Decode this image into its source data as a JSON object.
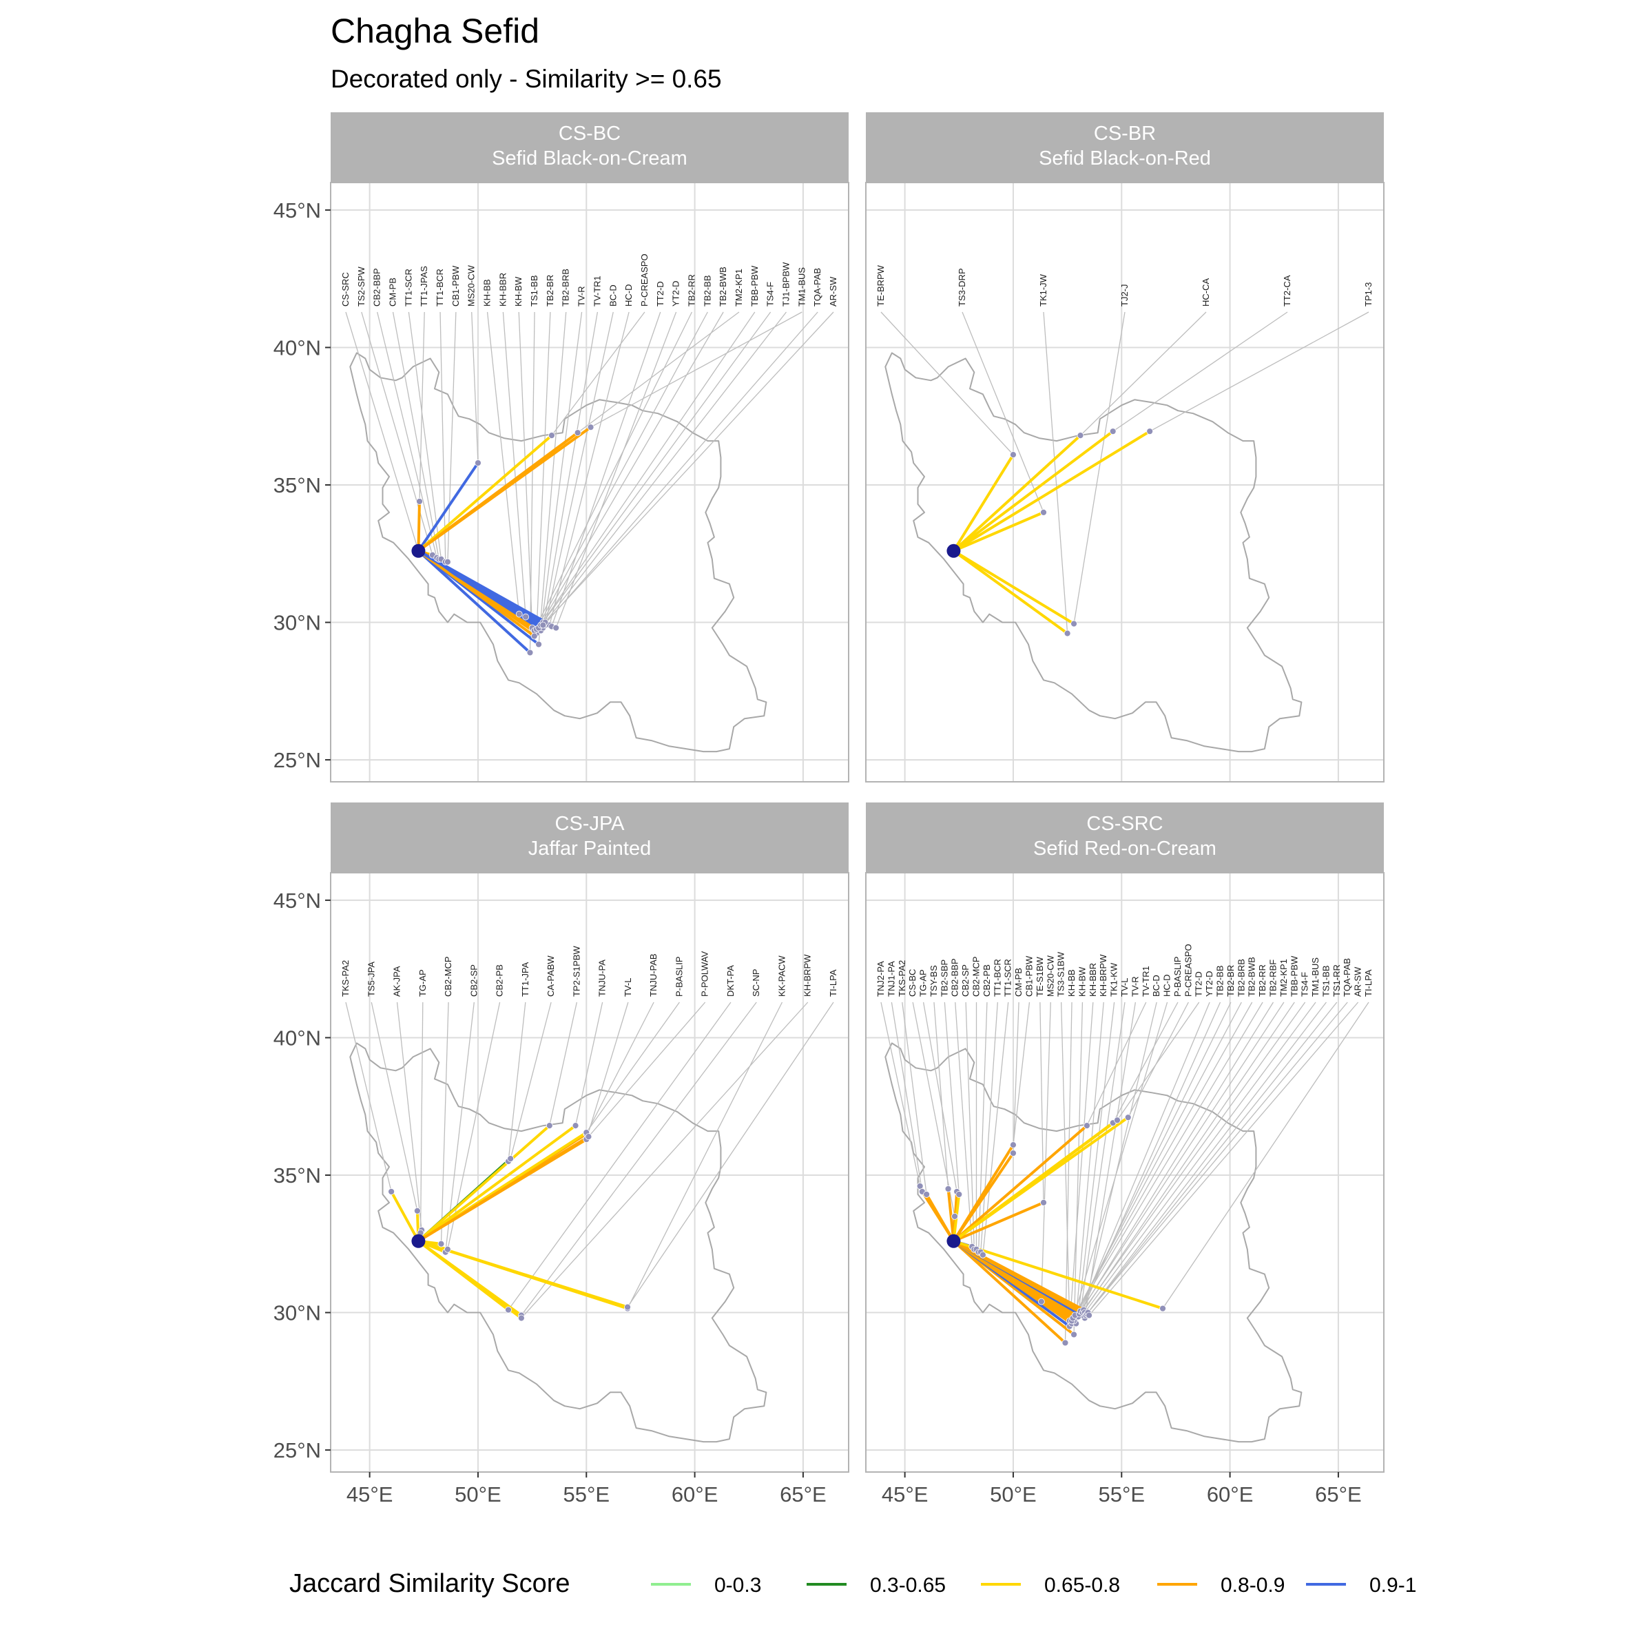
{
  "figure": {
    "title": "Chagha Sefid",
    "subtitle": "Decorated only - Similarity >= 0.65"
  },
  "legend": {
    "title": "Jaccard Similarity Score",
    "items": [
      {
        "label": "0-0.3",
        "color": "#90ee90"
      },
      {
        "label": "0.3-0.65",
        "color": "#228b22"
      },
      {
        "label": "0.65-0.8",
        "color": "#ffd700"
      },
      {
        "label": "0.8-0.9",
        "color": "#ffa500"
      },
      {
        "label": "0.9-1",
        "color": "#4169e1"
      }
    ]
  },
  "chart_data": {
    "type": "map",
    "origin": {
      "name": "Chagha Sefid",
      "lon": 47.25,
      "lat": 32.6
    },
    "xlim": [
      43.2,
      67.1
    ],
    "ylim": [
      24.2,
      46.0
    ],
    "x_ticks": [
      {
        "value": 45,
        "label": "45°E"
      },
      {
        "value": 50,
        "label": "50°E"
      },
      {
        "value": 55,
        "label": "55°E"
      },
      {
        "value": 60,
        "label": "60°E"
      },
      {
        "value": 65,
        "label": "65°E"
      }
    ],
    "y_ticks": [
      {
        "value": 25,
        "label": "25°N"
      },
      {
        "value": 30,
        "label": "30°N"
      },
      {
        "value": 35,
        "label": "35°N"
      },
      {
        "value": 40,
        "label": "40°N"
      },
      {
        "value": 45,
        "label": "45°N"
      }
    ],
    "grid": true,
    "iran_outline": [
      [
        44.1,
        39.3
      ],
      [
        44.4,
        39.8
      ],
      [
        44.8,
        39.6
      ],
      [
        45.0,
        39.2
      ],
      [
        45.5,
        38.9
      ],
      [
        46.2,
        38.8
      ],
      [
        46.5,
        38.9
      ],
      [
        47.0,
        39.3
      ],
      [
        47.8,
        39.6
      ],
      [
        48.2,
        39.1
      ],
      [
        48.0,
        38.5
      ],
      [
        48.6,
        38.3
      ],
      [
        48.9,
        37.8
      ],
      [
        49.1,
        37.5
      ],
      [
        49.6,
        37.4
      ],
      [
        50.1,
        37.2
      ],
      [
        50.5,
        36.9
      ],
      [
        51.2,
        36.7
      ],
      [
        52.0,
        36.6
      ],
      [
        53.0,
        36.8
      ],
      [
        53.9,
        36.9
      ],
      [
        54.0,
        37.4
      ],
      [
        55.0,
        37.9
      ],
      [
        55.6,
        38.1
      ],
      [
        56.4,
        38.0
      ],
      [
        57.1,
        37.9
      ],
      [
        57.6,
        37.7
      ],
      [
        58.3,
        37.6
      ],
      [
        59.2,
        37.3
      ],
      [
        59.9,
        36.9
      ],
      [
        60.6,
        36.6
      ],
      [
        61.1,
        36.6
      ],
      [
        61.2,
        36.0
      ],
      [
        61.2,
        35.3
      ],
      [
        61.1,
        34.9
      ],
      [
        60.8,
        34.5
      ],
      [
        60.5,
        34.0
      ],
      [
        60.7,
        33.6
      ],
      [
        60.9,
        33.1
      ],
      [
        60.6,
        32.9
      ],
      [
        60.8,
        32.3
      ],
      [
        60.9,
        31.6
      ],
      [
        61.6,
        31.4
      ],
      [
        61.8,
        30.9
      ],
      [
        61.4,
        30.4
      ],
      [
        60.8,
        29.8
      ],
      [
        61.3,
        29.2
      ],
      [
        61.6,
        28.8
      ],
      [
        62.4,
        28.4
      ],
      [
        62.8,
        27.6
      ],
      [
        62.9,
        27.2
      ],
      [
        63.3,
        27.1
      ],
      [
        63.2,
        26.6
      ],
      [
        62.3,
        26.5
      ],
      [
        61.8,
        26.2
      ],
      [
        61.6,
        25.4
      ],
      [
        61.0,
        25.3
      ],
      [
        60.4,
        25.3
      ],
      [
        59.6,
        25.4
      ],
      [
        58.8,
        25.5
      ],
      [
        58.0,
        25.7
      ],
      [
        57.3,
        25.8
      ],
      [
        57.0,
        26.6
      ],
      [
        56.6,
        27.1
      ],
      [
        56.1,
        27.1
      ],
      [
        55.5,
        26.7
      ],
      [
        54.7,
        26.5
      ],
      [
        54.0,
        26.6
      ],
      [
        53.5,
        26.8
      ],
      [
        52.7,
        27.4
      ],
      [
        51.9,
        27.8
      ],
      [
        51.4,
        27.9
      ],
      [
        50.9,
        28.6
      ],
      [
        50.7,
        29.2
      ],
      [
        50.1,
        30.0
      ],
      [
        49.5,
        30.0
      ],
      [
        48.9,
        30.3
      ],
      [
        48.6,
        30.0
      ],
      [
        48.2,
        30.4
      ],
      [
        48.0,
        30.9
      ],
      [
        47.7,
        31.0
      ],
      [
        47.7,
        31.4
      ],
      [
        47.3,
        31.8
      ],
      [
        46.8,
        32.3
      ],
      [
        46.1,
        32.9
      ],
      [
        45.6,
        33.1
      ],
      [
        45.4,
        33.7
      ],
      [
        45.9,
        34.0
      ],
      [
        45.6,
        34.3
      ],
      [
        45.6,
        34.9
      ],
      [
        45.9,
        35.3
      ],
      [
        45.4,
        35.8
      ],
      [
        45.3,
        36.2
      ],
      [
        44.9,
        36.6
      ],
      [
        44.8,
        37.2
      ],
      [
        44.6,
        37.7
      ],
      [
        44.4,
        38.3
      ],
      [
        44.1,
        39.3
      ]
    ],
    "panels": [
      {
        "id": "CS-BC",
        "strip": [
          "CS-BC",
          "Sefid Black-on-Cream"
        ],
        "sites": [
          {
            "label": "CS-SRC",
            "lon": 47.25,
            "lat": 32.6,
            "cls": null
          },
          {
            "label": "TS2-SPW",
            "lon": 47.9,
            "lat": 32.45,
            "cls": 2
          },
          {
            "label": "CB2-BBP",
            "lon": 48.1,
            "lat": 32.35,
            "cls": 3
          },
          {
            "label": "CM-PB",
            "lon": 48.2,
            "lat": 32.3,
            "cls": 3
          },
          {
            "label": "TT1-SCR",
            "lon": 48.3,
            "lat": 32.3,
            "cls": 3
          },
          {
            "label": "TT1-JPAS",
            "lon": 47.3,
            "lat": 34.4,
            "cls": 3
          },
          {
            "label": "TT1-BCR",
            "lon": 48.5,
            "lat": 32.2,
            "cls": 3
          },
          {
            "label": "CB1-PBW",
            "lon": 48.6,
            "lat": 32.2,
            "cls": 3
          },
          {
            "label": "MS20-CW",
            "lon": 50.0,
            "lat": 35.8,
            "cls": 4
          },
          {
            "label": "KH-BB",
            "lon": 51.9,
            "lat": 30.3,
            "cls": 4
          },
          {
            "label": "KH-BBR",
            "lon": 52.2,
            "lat": 30.2,
            "cls": 4
          },
          {
            "label": "KH-BW",
            "lon": 52.5,
            "lat": 29.8,
            "cls": 3
          },
          {
            "label": "TS1-BB",
            "lon": 52.4,
            "lat": 28.9,
            "cls": 4
          },
          {
            "label": "TB2-BR",
            "lon": 52.7,
            "lat": 29.6,
            "cls": 3
          },
          {
            "label": "TB2-BRB",
            "lon": 52.8,
            "lat": 29.2,
            "cls": 4
          },
          {
            "label": "TV-R",
            "lon": 52.9,
            "lat": 29.7,
            "cls": 3
          },
          {
            "label": "TV-TR1",
            "lon": 53.0,
            "lat": 29.8,
            "cls": 4
          },
          {
            "label": "BC-D",
            "lon": 53.1,
            "lat": 29.9,
            "cls": 4
          },
          {
            "label": "HC-D",
            "lon": 53.3,
            "lat": 29.9,
            "cls": 4
          },
          {
            "label": "P-CREASPO",
            "lon": 53.4,
            "lat": 36.8,
            "cls": 2
          },
          {
            "label": "TT2-D",
            "lon": 53.4,
            "lat": 29.85,
            "cls": 4
          },
          {
            "label": "YT2-D",
            "lon": 53.6,
            "lat": 29.8,
            "cls": 4
          },
          {
            "label": "TB2-RR",
            "lon": 52.6,
            "lat": 29.7,
            "cls": 3
          },
          {
            "label": "TB2-BB",
            "lon": 52.7,
            "lat": 29.75,
            "cls": 3
          },
          {
            "label": "TB2-BWB",
            "lon": 52.8,
            "lat": 29.8,
            "cls": 4
          },
          {
            "label": "TM2-KP1",
            "lon": 54.6,
            "lat": 36.9,
            "cls": 3
          },
          {
            "label": "TBB-PBW",
            "lon": 52.9,
            "lat": 29.9,
            "cls": 4
          },
          {
            "label": "TS4-F",
            "lon": 53.0,
            "lat": 30.0,
            "cls": 4
          },
          {
            "label": "TJ1-BPBW",
            "lon": 53.1,
            "lat": 30.0,
            "cls": 4
          },
          {
            "label": "TM1-BUS",
            "lon": 55.2,
            "lat": 37.1,
            "cls": 3
          },
          {
            "label": "TQA-PAB",
            "lon": 52.6,
            "lat": 29.5,
            "cls": 3
          },
          {
            "label": "AR-SW",
            "lon": 53.0,
            "lat": 29.9,
            "cls": 4
          }
        ]
      },
      {
        "id": "CS-BR",
        "strip": [
          "CS-BR",
          "Sefid Black-on-Red"
        ],
        "sites": [
          {
            "label": "TE-BRPW",
            "lon": 50.0,
            "lat": 36.1,
            "cls": 2
          },
          {
            "label": "TS3-DRP",
            "lon": 51.4,
            "lat": 34.0,
            "cls": 2
          },
          {
            "label": "TK1-JW",
            "lon": 52.5,
            "lat": 29.6,
            "cls": 2
          },
          {
            "label": "TJ2-J",
            "lon": 52.8,
            "lat": 29.95,
            "cls": 2
          },
          {
            "label": "HC-CA",
            "lon": 53.1,
            "lat": 36.8,
            "cls": 2
          },
          {
            "label": "TT2-CA",
            "lon": 54.6,
            "lat": 36.95,
            "cls": 2
          },
          {
            "label": "TP1-3",
            "lon": 56.3,
            "lat": 36.95,
            "cls": 2
          }
        ]
      },
      {
        "id": "CS-JPA",
        "strip": [
          "CS-JPA",
          "Jaffar Painted"
        ],
        "sites": [
          {
            "label": "TKS-PA2",
            "lon": 46.0,
            "lat": 34.4,
            "cls": 2
          },
          {
            "label": "TS5-JPA",
            "lon": 47.2,
            "lat": 33.7,
            "cls": 2
          },
          {
            "label": "AK-JPA",
            "lon": 47.4,
            "lat": 33.0,
            "cls": 2
          },
          {
            "label": "TG-AP",
            "lon": 47.35,
            "lat": 32.9,
            "cls": 2
          },
          {
            "label": "CB2-MCP",
            "lon": 48.3,
            "lat": 32.5,
            "cls": 2
          },
          {
            "label": "CB2-SP",
            "lon": 48.5,
            "lat": 32.2,
            "cls": 2
          },
          {
            "label": "CB2-PB",
            "lon": 48.6,
            "lat": 32.3,
            "cls": 2
          },
          {
            "label": "TT1-JPA",
            "lon": 51.4,
            "lat": 35.5,
            "cls": 2
          },
          {
            "label": "CA-PABW",
            "lon": 51.5,
            "lat": 35.6,
            "cls": 1
          },
          {
            "label": "TP2-S1PBW",
            "lon": 53.3,
            "lat": 36.8,
            "cls": 2
          },
          {
            "label": "TNJU-PA",
            "lon": 54.5,
            "lat": 36.8,
            "cls": 2
          },
          {
            "label": "TV-L",
            "lon": 55.0,
            "lat": 36.3,
            "cls": 3
          },
          {
            "label": "TNJU-PAB",
            "lon": 55.0,
            "lat": 36.5,
            "cls": 3
          },
          {
            "label": "P-BASLIP",
            "lon": 55.0,
            "lat": 36.55,
            "cls": 2
          },
          {
            "label": "P-POLWAV",
            "lon": 55.1,
            "lat": 36.4,
            "cls": 3
          },
          {
            "label": "DKT-PA",
            "lon": 51.4,
            "lat": 30.1,
            "cls": 2
          },
          {
            "label": "SC-NP",
            "lon": 52.0,
            "lat": 29.9,
            "cls": 2
          },
          {
            "label": "KK-PACW",
            "lon": 56.9,
            "lat": 30.15,
            "cls": 2
          },
          {
            "label": "KH-BRPW",
            "lon": 52.0,
            "lat": 29.8,
            "cls": 2
          },
          {
            "label": "TI-LPA",
            "lon": 56.9,
            "lat": 30.2,
            "cls": 2
          }
        ]
      },
      {
        "id": "CS-SRC",
        "strip": [
          "CS-SRC",
          "Sefid Red-on-Cream"
        ],
        "sites": [
          {
            "label": "TNJ2-PA",
            "lon": 45.7,
            "lat": 34.6,
            "cls": 3
          },
          {
            "label": "TNJ1-PA",
            "lon": 45.8,
            "lat": 34.4,
            "cls": 3
          },
          {
            "label": "TKS-PA2",
            "lon": 46.0,
            "lat": 34.3,
            "cls": 3
          },
          {
            "label": "CS-BC",
            "lon": 47.3,
            "lat": 33.5,
            "cls": 3
          },
          {
            "label": "TG-AP",
            "lon": 47.4,
            "lat": 34.4,
            "cls": 3
          },
          {
            "label": "TSY-BS",
            "lon": 47.0,
            "lat": 34.5,
            "cls": 3
          },
          {
            "label": "TB2-SBP",
            "lon": 47.5,
            "lat": 34.3,
            "cls": 2
          },
          {
            "label": "CB2-BBP",
            "lon": 48.1,
            "lat": 32.4,
            "cls": 4
          },
          {
            "label": "CB2-SP",
            "lon": 48.2,
            "lat": 32.3,
            "cls": 3
          },
          {
            "label": "CB2-MCP",
            "lon": 48.3,
            "lat": 32.3,
            "cls": 3
          },
          {
            "label": "CB2-PB",
            "lon": 48.4,
            "lat": 32.2,
            "cls": 3
          },
          {
            "label": "TT1-BCR",
            "lon": 48.5,
            "lat": 32.2,
            "cls": 3
          },
          {
            "label": "TT1-SCR",
            "lon": 48.6,
            "lat": 32.1,
            "cls": 2
          },
          {
            "label": "CM-PB",
            "lon": 50.0,
            "lat": 35.8,
            "cls": 3
          },
          {
            "label": "CB1-PBW",
            "lon": 50.0,
            "lat": 36.1,
            "cls": 3
          },
          {
            "label": "TE-S1BW",
            "lon": 51.4,
            "lat": 34.0,
            "cls": 3
          },
          {
            "label": "MS20-CW",
            "lon": 51.3,
            "lat": 30.4,
            "cls": 4
          },
          {
            "label": "TS3-S1BW",
            "lon": 52.6,
            "lat": 29.7,
            "cls": 3
          },
          {
            "label": "KH-BB",
            "lon": 52.4,
            "lat": 28.9,
            "cls": 3
          },
          {
            "label": "KH-BW",
            "lon": 52.8,
            "lat": 29.2,
            "cls": 3
          },
          {
            "label": "KH-BBR",
            "lon": 52.6,
            "lat": 29.5,
            "cls": 4
          },
          {
            "label": "KH-BRPW",
            "lon": 52.9,
            "lat": 29.8,
            "cls": 3
          },
          {
            "label": "TK1-KW",
            "lon": 53.0,
            "lat": 29.9,
            "cls": 3
          },
          {
            "label": "TV-L",
            "lon": 53.1,
            "lat": 30.0,
            "cls": 3
          },
          {
            "label": "TV-R",
            "lon": 53.3,
            "lat": 29.8,
            "cls": 3
          },
          {
            "label": "TV-TR1",
            "lon": 53.4,
            "lat": 36.8,
            "cls": 3
          },
          {
            "label": "BC-D",
            "lon": 53.2,
            "lat": 29.9,
            "cls": 3
          },
          {
            "label": "HC-D",
            "lon": 52.7,
            "lat": 29.6,
            "cls": 3
          },
          {
            "label": "P-BASLIP",
            "lon": 54.6,
            "lat": 36.9,
            "cls": 2
          },
          {
            "label": "P-CREASPO",
            "lon": 55.3,
            "lat": 37.1,
            "cls": 2
          },
          {
            "label": "TT2-D",
            "lon": 54.8,
            "lat": 37.0,
            "cls": 2
          },
          {
            "label": "YT2-D",
            "lon": 53.0,
            "lat": 29.85,
            "cls": 3
          },
          {
            "label": "TB2-BB",
            "lon": 52.9,
            "lat": 29.6,
            "cls": 3
          },
          {
            "label": "TB2-BR",
            "lon": 52.8,
            "lat": 29.7,
            "cls": 3
          },
          {
            "label": "TB2-BRB",
            "lon": 52.7,
            "lat": 29.7,
            "cls": 3
          },
          {
            "label": "TB2-BWB",
            "lon": 52.75,
            "lat": 29.8,
            "cls": 3
          },
          {
            "label": "TB2-RR",
            "lon": 52.85,
            "lat": 29.9,
            "cls": 3
          },
          {
            "label": "TB2-RBF",
            "lon": 53.05,
            "lat": 29.95,
            "cls": 4
          },
          {
            "label": "TM2-KP1",
            "lon": 53.1,
            "lat": 30.05,
            "cls": 3
          },
          {
            "label": "TBB-PBW",
            "lon": 53.2,
            "lat": 30.0,
            "cls": 3
          },
          {
            "label": "TS4-F",
            "lon": 53.25,
            "lat": 30.1,
            "cls": 3
          },
          {
            "label": "TM1-BUS",
            "lon": 53.3,
            "lat": 30.0,
            "cls": 3
          },
          {
            "label": "TS1-BB",
            "lon": 53.35,
            "lat": 29.9,
            "cls": 3
          },
          {
            "label": "TS1-RR",
            "lon": 53.4,
            "lat": 29.95,
            "cls": 3
          },
          {
            "label": "TQA-PAB",
            "lon": 53.45,
            "lat": 30.0,
            "cls": 3
          },
          {
            "label": "AR-SW",
            "lon": 53.5,
            "lat": 29.9,
            "cls": 3
          },
          {
            "label": "TI-LPA",
            "lon": 56.9,
            "lat": 30.15,
            "cls": 2
          }
        ]
      }
    ]
  }
}
